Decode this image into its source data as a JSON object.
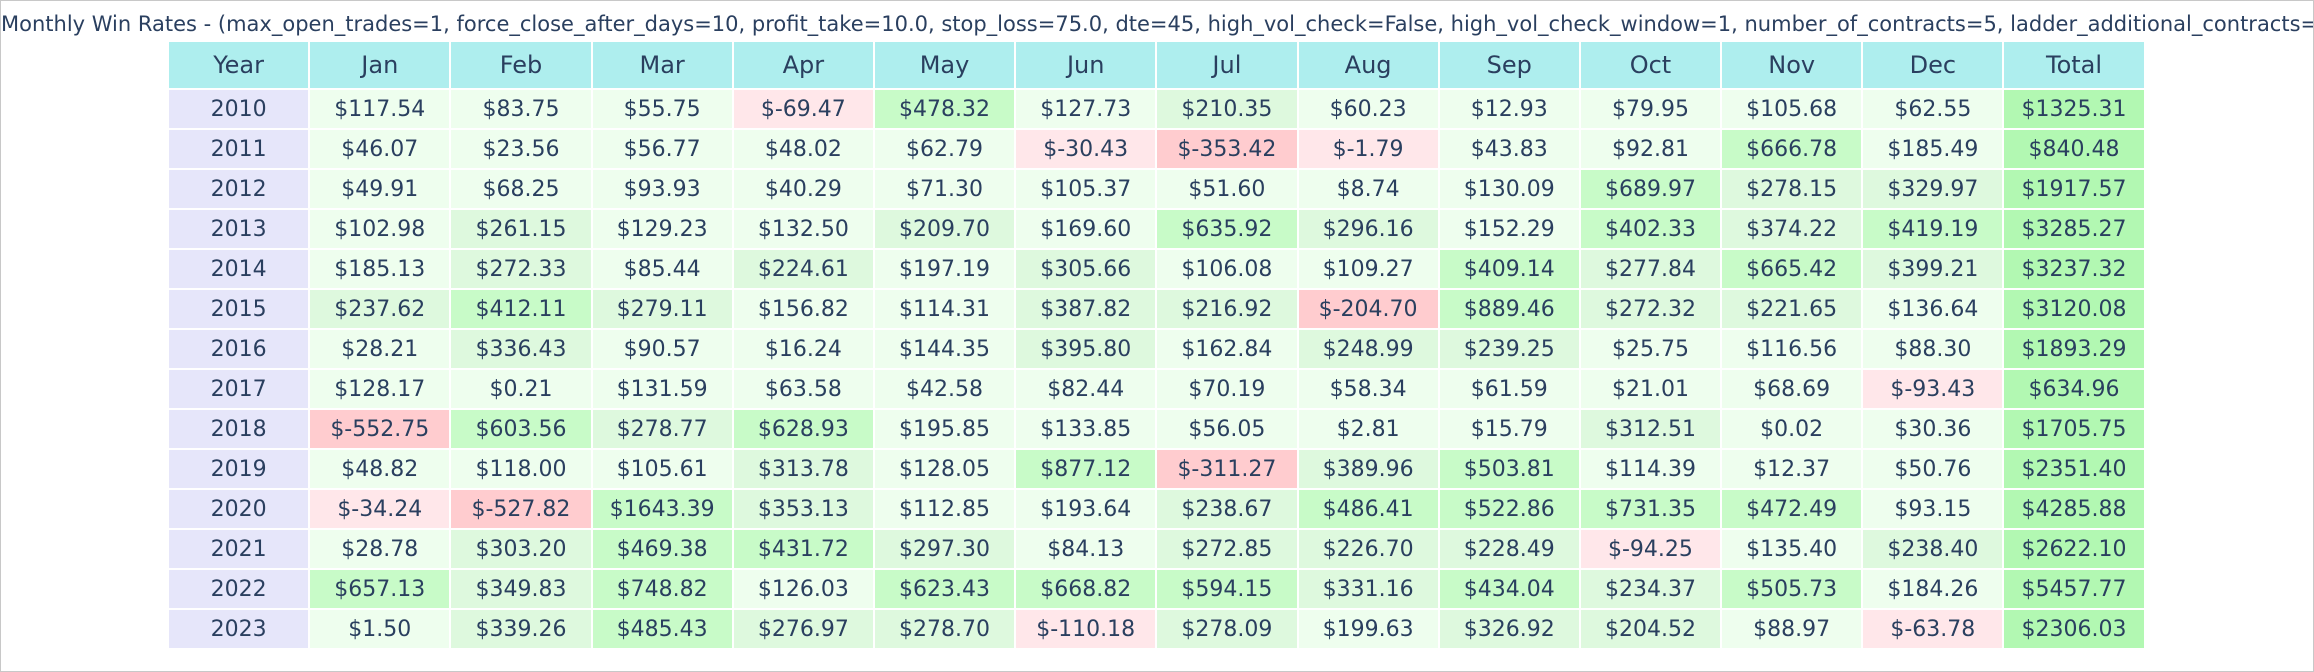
{
  "chart_data": {
    "type": "table",
    "title": "Monthly Win Rates - (max_open_trades=1, force_close_after_days=10, profit_take=10.0, stop_loss=75.0, dte=45, high_vol_check=False, high_vol_check_window=1, number_of_contracts=5, ladder_additional_contracts=True)",
    "columns": [
      "Year",
      "Jan",
      "Feb",
      "Mar",
      "Apr",
      "May",
      "Jun",
      "Jul",
      "Aug",
      "Sep",
      "Oct",
      "Nov",
      "Dec",
      "Total"
    ],
    "rows": [
      {
        "year": "2010",
        "values": [
          "$117.54",
          "$83.75",
          "$55.75",
          "$-69.47",
          "$478.32",
          "$127.73",
          "$210.35",
          "$60.23",
          "$12.93",
          "$79.95",
          "$105.68",
          "$62.55"
        ],
        "total": "$1325.31"
      },
      {
        "year": "2011",
        "values": [
          "$46.07",
          "$23.56",
          "$56.77",
          "$48.02",
          "$62.79",
          "$-30.43",
          "$-353.42",
          "$-1.79",
          "$43.83",
          "$92.81",
          "$666.78",
          "$185.49"
        ],
        "total": "$840.48"
      },
      {
        "year": "2012",
        "values": [
          "$49.91",
          "$68.25",
          "$93.93",
          "$40.29",
          "$71.30",
          "$105.37",
          "$51.60",
          "$8.74",
          "$130.09",
          "$689.97",
          "$278.15",
          "$329.97"
        ],
        "total": "$1917.57"
      },
      {
        "year": "2013",
        "values": [
          "$102.98",
          "$261.15",
          "$129.23",
          "$132.50",
          "$209.70",
          "$169.60",
          "$635.92",
          "$296.16",
          "$152.29",
          "$402.33",
          "$374.22",
          "$419.19"
        ],
        "total": "$3285.27"
      },
      {
        "year": "2014",
        "values": [
          "$185.13",
          "$272.33",
          "$85.44",
          "$224.61",
          "$197.19",
          "$305.66",
          "$106.08",
          "$109.27",
          "$409.14",
          "$277.84",
          "$665.42",
          "$399.21"
        ],
        "total": "$3237.32"
      },
      {
        "year": "2015",
        "values": [
          "$237.62",
          "$412.11",
          "$279.11",
          "$156.82",
          "$114.31",
          "$387.82",
          "$216.92",
          "$-204.70",
          "$889.46",
          "$272.32",
          "$221.65",
          "$136.64"
        ],
        "total": "$3120.08"
      },
      {
        "year": "2016",
        "values": [
          "$28.21",
          "$336.43",
          "$90.57",
          "$16.24",
          "$144.35",
          "$395.80",
          "$162.84",
          "$248.99",
          "$239.25",
          "$25.75",
          "$116.56",
          "$88.30"
        ],
        "total": "$1893.29"
      },
      {
        "year": "2017",
        "values": [
          "$128.17",
          "$0.21",
          "$131.59",
          "$63.58",
          "$42.58",
          "$82.44",
          "$70.19",
          "$58.34",
          "$61.59",
          "$21.01",
          "$68.69",
          "$-93.43"
        ],
        "total": "$634.96"
      },
      {
        "year": "2018",
        "values": [
          "$-552.75",
          "$603.56",
          "$278.77",
          "$628.93",
          "$195.85",
          "$133.85",
          "$56.05",
          "$2.81",
          "$15.79",
          "$312.51",
          "$0.02",
          "$30.36"
        ],
        "total": "$1705.75"
      },
      {
        "year": "2019",
        "values": [
          "$48.82",
          "$118.00",
          "$105.61",
          "$313.78",
          "$128.05",
          "$877.12",
          "$-311.27",
          "$389.96",
          "$503.81",
          "$114.39",
          "$12.37",
          "$50.76"
        ],
        "total": "$2351.40"
      },
      {
        "year": "2020",
        "values": [
          "$-34.24",
          "$-527.82",
          "$1643.39",
          "$353.13",
          "$112.85",
          "$193.64",
          "$238.67",
          "$486.41",
          "$522.86",
          "$731.35",
          "$472.49",
          "$93.15"
        ],
        "total": "$4285.88"
      },
      {
        "year": "2021",
        "values": [
          "$28.78",
          "$303.20",
          "$469.38",
          "$431.72",
          "$297.30",
          "$84.13",
          "$272.85",
          "$226.70",
          "$228.49",
          "$-94.25",
          "$135.40",
          "$238.40"
        ],
        "total": "$2622.10"
      },
      {
        "year": "2022",
        "values": [
          "$657.13",
          "$349.83",
          "$748.82",
          "$126.03",
          "$623.43",
          "$668.82",
          "$594.15",
          "$331.16",
          "$434.04",
          "$234.37",
          "$505.73",
          "$184.26"
        ],
        "total": "$5457.77"
      },
      {
        "year": "2023",
        "values": [
          "$1.50",
          "$339.26",
          "$485.43",
          "$276.97",
          "$278.70",
          "$-110.18",
          "$278.09",
          "$199.63",
          "$326.92",
          "$204.52",
          "$88.97",
          "$-63.78"
        ],
        "total": "$2306.03"
      }
    ]
  },
  "colors": {
    "header_bg": "#aeeeee",
    "year_bg": "#e6e6fa",
    "text": "#2a3f5f",
    "positive_light": "#eefeee",
    "positive_mid": "#def9de",
    "positive_strong": "#c8fbc8",
    "total_bg": "#b2f8b2",
    "negative_light": "#ffe7ea",
    "negative_strong": "#ffcccf"
  }
}
